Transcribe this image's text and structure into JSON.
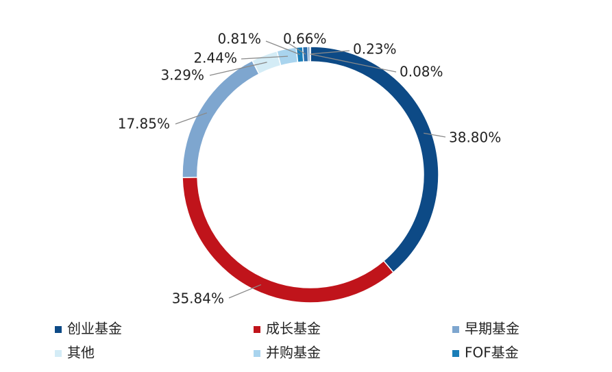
{
  "chart_data": {
    "type": "donut",
    "categories": [
      "创业基金",
      "成长基金",
      "早期基金",
      "其他",
      "并购基金",
      "FOF基金",
      null,
      null,
      null
    ],
    "values": [
      38.8,
      35.84,
      17.85,
      3.29,
      2.44,
      0.81,
      0.66,
      0.23,
      0.08
    ],
    "value_labels": [
      "38.80%",
      "35.84%",
      "17.85%",
      "3.29%",
      "2.44%",
      "0.81%",
      "0.66%",
      "0.23%",
      "0.08%"
    ],
    "colors": [
      "#0d4a86",
      "#c0141b",
      "#7ea6cf",
      "#d4ecf6",
      "#a9d4ee",
      "#1a7eb8",
      "#2c6fad",
      "#1b5da0",
      "#0f3f78"
    ]
  }
}
